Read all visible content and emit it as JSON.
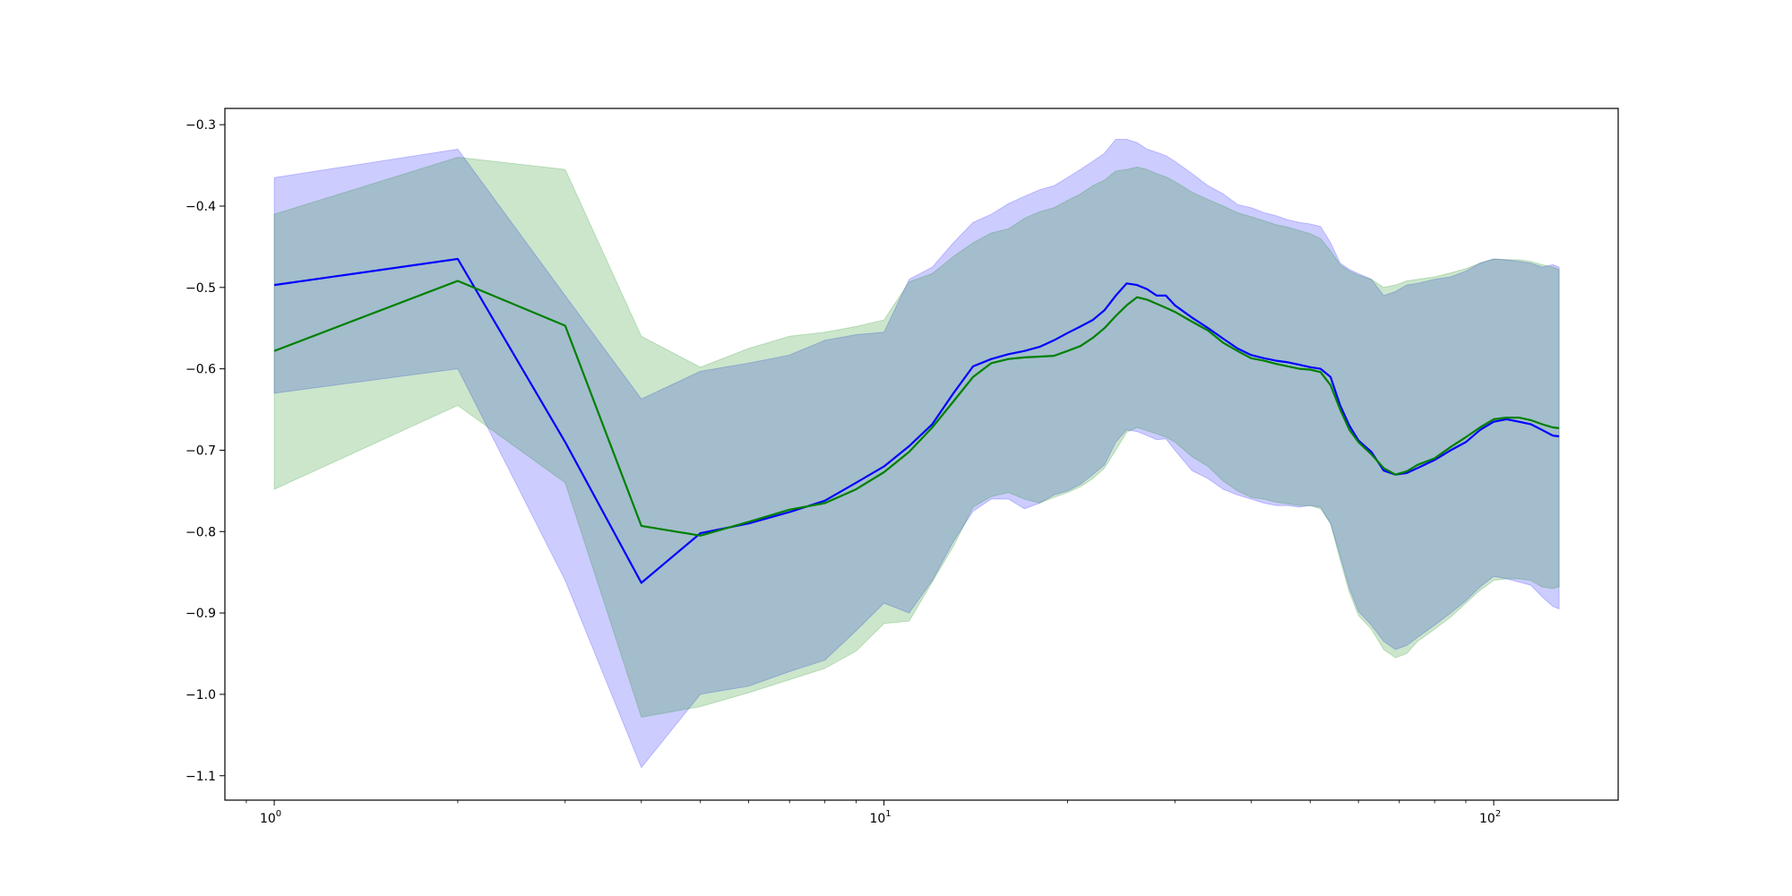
{
  "chart_data": {
    "type": "line",
    "title": "",
    "xlabel": "",
    "ylabel": "",
    "xscale": "log",
    "xlim": [
      0.83,
      160
    ],
    "ylim": [
      -1.13,
      -0.28
    ],
    "grid": false,
    "legend": "none",
    "y_ticks": [
      -0.3,
      -0.4,
      -0.5,
      -0.6,
      -0.7,
      -0.8,
      -0.9,
      -1.0,
      -1.1
    ],
    "y_tick_labels": [
      "−0.3",
      "−0.4",
      "−0.5",
      "−0.6",
      "−0.7",
      "−0.8",
      "−0.9",
      "−1.0",
      "−1.1"
    ],
    "x_ticks": [
      {
        "value": 1,
        "base": "10",
        "exp": "0"
      },
      {
        "value": 10,
        "base": "10",
        "exp": "1"
      },
      {
        "value": 100,
        "base": "10",
        "exp": "2"
      }
    ],
    "series": [
      {
        "color": "#0000ff",
        "band_color": "#0000ff",
        "band_opacity": 0.2,
        "points": [
          [
            1,
            -0.497,
            -0.365,
            -0.63
          ],
          [
            2,
            -0.465,
            -0.33,
            -0.6
          ],
          [
            3,
            -0.69,
            -0.51,
            -0.86
          ],
          [
            4,
            -0.863,
            -0.637,
            -1.09
          ],
          [
            5,
            -0.802,
            -0.603,
            -1.0
          ],
          [
            6,
            -0.79,
            -0.593,
            -0.99
          ],
          [
            7,
            -0.776,
            -0.583,
            -0.972
          ],
          [
            8,
            -0.762,
            -0.565,
            -0.958
          ],
          [
            9,
            -0.74,
            -0.558,
            -0.922
          ],
          [
            10,
            -0.72,
            -0.555,
            -0.888
          ],
          [
            11,
            -0.695,
            -0.49,
            -0.9
          ],
          [
            12,
            -0.668,
            -0.475,
            -0.86
          ],
          [
            13,
            -0.63,
            -0.445,
            -0.812
          ],
          [
            14,
            -0.597,
            -0.42,
            -0.775
          ],
          [
            15,
            -0.588,
            -0.41,
            -0.76
          ],
          [
            16,
            -0.582,
            -0.397,
            -0.76
          ],
          [
            17,
            -0.578,
            -0.388,
            -0.772
          ],
          [
            18,
            -0.573,
            -0.38,
            -0.765
          ],
          [
            19,
            -0.565,
            -0.375,
            -0.755
          ],
          [
            20,
            -0.556,
            -0.365,
            -0.75
          ],
          [
            21,
            -0.548,
            -0.355,
            -0.742
          ],
          [
            22,
            -0.54,
            -0.345,
            -0.73
          ],
          [
            23,
            -0.528,
            -0.335,
            -0.718
          ],
          [
            24,
            -0.51,
            -0.318,
            -0.69
          ],
          [
            25,
            -0.495,
            -0.318,
            -0.675
          ],
          [
            26,
            -0.497,
            -0.322,
            -0.677
          ],
          [
            27,
            -0.502,
            -0.33,
            -0.682
          ],
          [
            28,
            -0.51,
            -0.334,
            -0.687
          ],
          [
            29,
            -0.51,
            -0.338,
            -0.686
          ],
          [
            30,
            -0.522,
            -0.345,
            -0.7
          ],
          [
            32,
            -0.537,
            -0.36,
            -0.725
          ],
          [
            34,
            -0.55,
            -0.375,
            -0.735
          ],
          [
            36,
            -0.563,
            -0.385,
            -0.748
          ],
          [
            38,
            -0.575,
            -0.398,
            -0.755
          ],
          [
            40,
            -0.583,
            -0.402,
            -0.76
          ],
          [
            42,
            -0.587,
            -0.408,
            -0.765
          ],
          [
            44,
            -0.59,
            -0.412,
            -0.768
          ],
          [
            46,
            -0.592,
            -0.417,
            -0.768
          ],
          [
            48,
            -0.595,
            -0.42,
            -0.77
          ],
          [
            50,
            -0.598,
            -0.422,
            -0.768
          ],
          [
            52,
            -0.6,
            -0.425,
            -0.77
          ],
          [
            54,
            -0.61,
            -0.445,
            -0.79
          ],
          [
            56,
            -0.645,
            -0.47,
            -0.83
          ],
          [
            58,
            -0.67,
            -0.478,
            -0.87
          ],
          [
            60,
            -0.688,
            -0.483,
            -0.898
          ],
          [
            63,
            -0.702,
            -0.49,
            -0.915
          ],
          [
            66,
            -0.725,
            -0.51,
            -0.935
          ],
          [
            69,
            -0.73,
            -0.505,
            -0.945
          ],
          [
            72,
            -0.728,
            -0.497,
            -0.94
          ],
          [
            75,
            -0.722,
            -0.495,
            -0.93
          ],
          [
            80,
            -0.712,
            -0.49,
            -0.915
          ],
          [
            85,
            -0.7,
            -0.487,
            -0.9
          ],
          [
            90,
            -0.69,
            -0.48,
            -0.885
          ],
          [
            95,
            -0.675,
            -0.47,
            -0.868
          ],
          [
            100,
            -0.665,
            -0.465,
            -0.855
          ],
          [
            105,
            -0.662,
            -0.466,
            -0.858
          ],
          [
            110,
            -0.665,
            -0.468,
            -0.862
          ],
          [
            115,
            -0.668,
            -0.47,
            -0.866
          ],
          [
            120,
            -0.675,
            -0.475,
            -0.88
          ],
          [
            125,
            -0.682,
            -0.472,
            -0.892
          ],
          [
            128,
            -0.683,
            -0.475,
            -0.895
          ]
        ]
      },
      {
        "color": "#008000",
        "band_color": "#008000",
        "band_opacity": 0.2,
        "points": [
          [
            1,
            -0.578,
            -0.41,
            -0.748
          ],
          [
            2,
            -0.492,
            -0.34,
            -0.645
          ],
          [
            3,
            -0.547,
            -0.355,
            -0.74
          ],
          [
            4,
            -0.793,
            -0.56,
            -1.028
          ],
          [
            5,
            -0.805,
            -0.598,
            -1.015
          ],
          [
            6,
            -0.788,
            -0.575,
            -0.998
          ],
          [
            7,
            -0.773,
            -0.56,
            -0.982
          ],
          [
            8,
            -0.765,
            -0.555,
            -0.968
          ],
          [
            9,
            -0.748,
            -0.548,
            -0.947
          ],
          [
            10,
            -0.727,
            -0.54,
            -0.913
          ],
          [
            11,
            -0.702,
            -0.493,
            -0.91
          ],
          [
            12,
            -0.672,
            -0.483,
            -0.862
          ],
          [
            13,
            -0.64,
            -0.462,
            -0.818
          ],
          [
            14,
            -0.61,
            -0.445,
            -0.77
          ],
          [
            15,
            -0.593,
            -0.433,
            -0.757
          ],
          [
            16,
            -0.588,
            -0.428,
            -0.752
          ],
          [
            17,
            -0.586,
            -0.415,
            -0.76
          ],
          [
            18,
            -0.585,
            -0.407,
            -0.765
          ],
          [
            19,
            -0.584,
            -0.402,
            -0.758
          ],
          [
            20,
            -0.578,
            -0.393,
            -0.752
          ],
          [
            21,
            -0.572,
            -0.385,
            -0.745
          ],
          [
            22,
            -0.562,
            -0.375,
            -0.735
          ],
          [
            23,
            -0.55,
            -0.368,
            -0.722
          ],
          [
            24,
            -0.535,
            -0.357,
            -0.7
          ],
          [
            25,
            -0.522,
            -0.355,
            -0.678
          ],
          [
            26,
            -0.512,
            -0.352,
            -0.672
          ],
          [
            27,
            -0.515,
            -0.355,
            -0.676
          ],
          [
            28,
            -0.52,
            -0.36,
            -0.68
          ],
          [
            29,
            -0.525,
            -0.364,
            -0.684
          ],
          [
            30,
            -0.53,
            -0.37,
            -0.69
          ],
          [
            32,
            -0.542,
            -0.383,
            -0.708
          ],
          [
            34,
            -0.553,
            -0.392,
            -0.72
          ],
          [
            36,
            -0.568,
            -0.4,
            -0.738
          ],
          [
            38,
            -0.578,
            -0.408,
            -0.75
          ],
          [
            40,
            -0.587,
            -0.413,
            -0.758
          ],
          [
            42,
            -0.59,
            -0.418,
            -0.76
          ],
          [
            44,
            -0.594,
            -0.423,
            -0.764
          ],
          [
            46,
            -0.597,
            -0.426,
            -0.766
          ],
          [
            48,
            -0.6,
            -0.43,
            -0.768
          ],
          [
            50,
            -0.601,
            -0.434,
            -0.768
          ],
          [
            52,
            -0.604,
            -0.44,
            -0.772
          ],
          [
            54,
            -0.62,
            -0.455,
            -0.79
          ],
          [
            56,
            -0.65,
            -0.472,
            -0.835
          ],
          [
            58,
            -0.675,
            -0.48,
            -0.875
          ],
          [
            60,
            -0.69,
            -0.485,
            -0.903
          ],
          [
            63,
            -0.705,
            -0.49,
            -0.92
          ],
          [
            66,
            -0.722,
            -0.5,
            -0.945
          ],
          [
            69,
            -0.73,
            -0.497,
            -0.955
          ],
          [
            72,
            -0.726,
            -0.492,
            -0.95
          ],
          [
            75,
            -0.718,
            -0.49,
            -0.935
          ],
          [
            80,
            -0.71,
            -0.487,
            -0.92
          ],
          [
            85,
            -0.696,
            -0.482,
            -0.905
          ],
          [
            90,
            -0.684,
            -0.477,
            -0.888
          ],
          [
            95,
            -0.672,
            -0.47,
            -0.872
          ],
          [
            100,
            -0.662,
            -0.465,
            -0.86
          ],
          [
            105,
            -0.66,
            -0.466,
            -0.858
          ],
          [
            110,
            -0.66,
            -0.466,
            -0.858
          ],
          [
            115,
            -0.663,
            -0.468,
            -0.86
          ],
          [
            120,
            -0.668,
            -0.472,
            -0.868
          ],
          [
            125,
            -0.672,
            -0.475,
            -0.87
          ],
          [
            128,
            -0.673,
            -0.478,
            -0.868
          ]
        ]
      }
    ]
  }
}
